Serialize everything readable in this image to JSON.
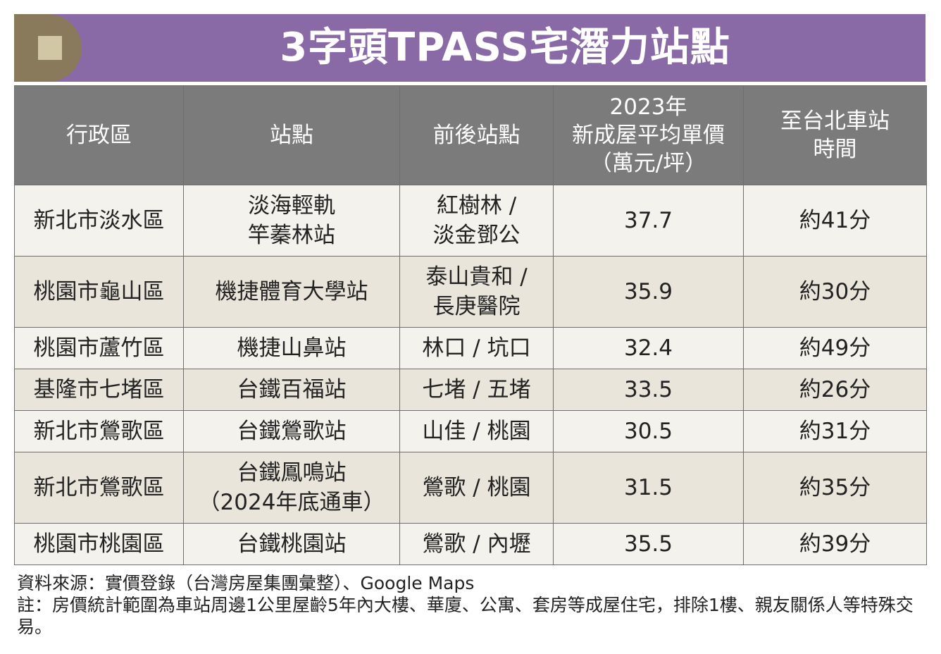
{
  "title": "3字頭TPASS宅潛力站點",
  "colors": {
    "title_bg": "#8a6aa6",
    "badge": "#8a7a5c",
    "header_bg": "#7b7b7b",
    "row_odd": "#f4f2ec",
    "row_even": "#e9e5da"
  },
  "table": {
    "headers": [
      {
        "lines": [
          "行政區"
        ]
      },
      {
        "lines": [
          "站點"
        ]
      },
      {
        "lines": [
          "前後站點"
        ]
      },
      {
        "lines": [
          "2023年",
          "新成屋平均單價",
          "（萬元/坪）"
        ]
      },
      {
        "lines": [
          "至台北車站",
          "時間"
        ]
      }
    ],
    "rows": [
      {
        "district": "新北市淡水區",
        "station": [
          "淡海輕軌",
          "竿蓁林站"
        ],
        "neighbors": [
          "紅樹林 /",
          "淡金鄧公"
        ],
        "price": "37.7",
        "time": "約41分"
      },
      {
        "district": "桃園市龜山區",
        "station": [
          "機捷體育大學站"
        ],
        "neighbors": [
          "泰山貴和 /",
          "長庚醫院"
        ],
        "price": "35.9",
        "time": "約30分"
      },
      {
        "district": "桃園市蘆竹區",
        "station": [
          "機捷山鼻站"
        ],
        "neighbors": [
          "林口 / 坑口"
        ],
        "price": "32.4",
        "time": "約49分"
      },
      {
        "district": "基隆市七堵區",
        "station": [
          "台鐵百福站"
        ],
        "neighbors": [
          "七堵 / 五堵"
        ],
        "price": "33.5",
        "time": "約26分"
      },
      {
        "district": "新北市鶯歌區",
        "station": [
          "台鐵鶯歌站"
        ],
        "neighbors": [
          "山佳 / 桃園"
        ],
        "price": "30.5",
        "time": "約31分"
      },
      {
        "district": "新北市鶯歌區",
        "station": [
          "台鐵鳳鳴站",
          "（2024年底通車）"
        ],
        "neighbors": [
          "鶯歌 / 桃園"
        ],
        "price": "31.5",
        "time": "約35分"
      },
      {
        "district": "桃園市桃園區",
        "station": [
          "台鐵桃園站"
        ],
        "neighbors": [
          "鶯歌 / 內壢"
        ],
        "price": "35.5",
        "time": "約39分"
      }
    ]
  },
  "footer": {
    "source": "資料來源：實價登錄（台灣房屋集團彙整）、Google Maps",
    "note": "註：房價統計範圍為車站周邊1公里屋齡5年內大樓、華廈、公寓、套房等成屋住宅，排除1樓、親友關係人等特殊交易。"
  }
}
